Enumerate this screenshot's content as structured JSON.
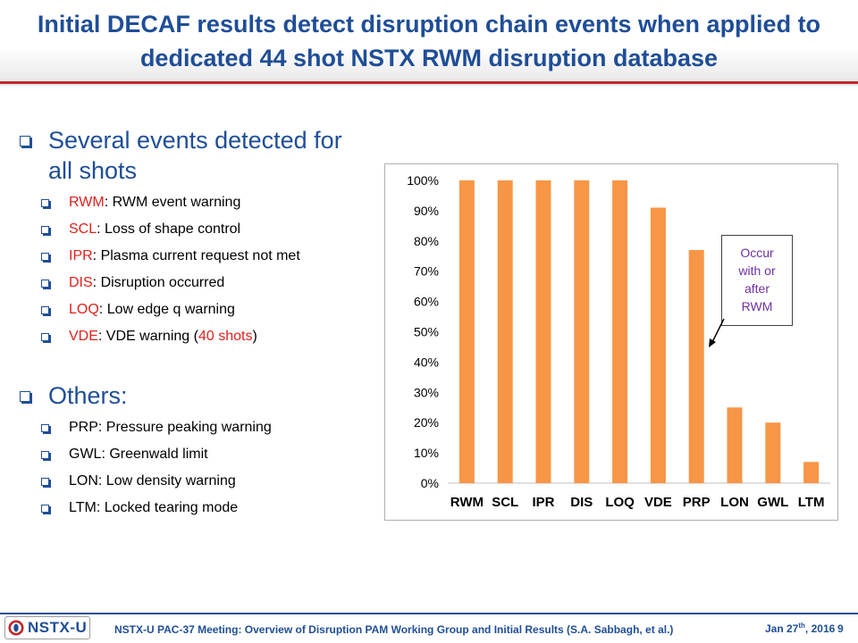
{
  "title": "Initial DECAF results detect disruption chain events when applied to dedicated 44 shot NSTX RWM disruption database",
  "section1": {
    "heading": "Several events detected for all shots",
    "items": [
      {
        "code": "RWM",
        "text": ": RWM event warning"
      },
      {
        "code": "SCL",
        "text": ": Loss of shape control"
      },
      {
        "code": "IPR",
        "text": ": Plasma current request not met"
      },
      {
        "code": "DIS",
        "text": ": Disruption occurred"
      },
      {
        "code": "LOQ",
        "text": ": Low edge q warning"
      },
      {
        "code": "VDE",
        "text": ": VDE warning (",
        "extra": "40 shots",
        "tail": ")"
      }
    ]
  },
  "section2": {
    "heading": "Others:",
    "items": [
      "PRP: Pressure peaking warning",
      "GWL: Greenwald limit",
      "LON: Low density warning",
      "LTM: Locked tearing mode"
    ]
  },
  "callout": [
    "Occur",
    "with or",
    "after",
    "RWM"
  ],
  "footer": {
    "logo": "NSTX-U",
    "meeting": "NSTX-U PAC-37 Meeting: Overview of Disruption PAM Working Group and Initial Results",
    "authors": " (S.A. Sabbagh, et al.)",
    "date_main": "Jan 27",
    "date_sup": "th",
    "date_tail": ", 2016",
    "page": "9"
  },
  "colors": {
    "title": "#1f4e97",
    "accent_red": "#e2211c",
    "bar": "#f79646",
    "callout_text": "#7030a0"
  },
  "chart_data": {
    "type": "bar",
    "categories": [
      "RWM",
      "SCL",
      "IPR",
      "DIS",
      "LOQ",
      "VDE",
      "PRP",
      "LON",
      "GWL",
      "LTM"
    ],
    "values": [
      100,
      100,
      100,
      100,
      100,
      91,
      77,
      25,
      20,
      7
    ],
    "ylim": [
      0,
      100
    ],
    "yticks": [
      "0%",
      "10%",
      "20%",
      "30%",
      "40%",
      "50%",
      "60%",
      "70%",
      "80%",
      "90%",
      "100%"
    ],
    "grid": false,
    "legend": "none"
  }
}
